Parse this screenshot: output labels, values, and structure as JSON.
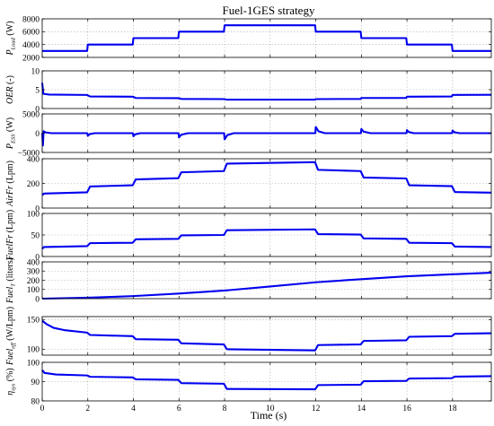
{
  "figure": {
    "title": "Fuel-1GES strategy",
    "xlabel": "Time (s)"
  },
  "colors": {
    "line": "#0000ee",
    "grid": "#b0b0b0",
    "axis": "#000000"
  },
  "chart_data": [
    {
      "type": "line",
      "ylabel_main": "P",
      "ylabel_sub": "Load",
      "ylabel_unit": "(W)",
      "xlim": [
        0,
        19.7
      ],
      "ylim": [
        2000,
        8000
      ],
      "yticks": [
        2000,
        4000,
        6000,
        8000
      ],
      "grid": true,
      "series": [
        {
          "x": [
            0,
            1.97,
            2.0,
            3.97,
            4.0,
            5.97,
            6.0,
            7.97,
            8.0,
            11.97,
            12.0,
            13.97,
            14.0,
            15.97,
            16.0,
            17.97,
            18.0,
            19.7
          ],
          "y": [
            3000,
            3000,
            4000,
            4000,
            5000,
            5000,
            6000,
            6000,
            7000,
            7000,
            6000,
            6000,
            5000,
            5000,
            4000,
            4000,
            3000,
            3000
          ]
        }
      ]
    },
    {
      "type": "line",
      "ylabel_main": "OER",
      "ylabel_sub": "",
      "ylabel_unit": "(-)",
      "xlim": [
        0,
        19.7
      ],
      "ylim": [
        0,
        10
      ],
      "yticks": [
        0,
        5,
        10
      ],
      "grid": true,
      "series": [
        {
          "x": [
            0,
            0.05,
            0.3,
            1.97,
            2.1,
            3.97,
            4.1,
            5.97,
            6.1,
            7.97,
            8.1,
            11.97,
            12.0,
            13.97,
            14.0,
            15.97,
            16.0,
            17.97,
            18.0,
            19.7
          ],
          "y": [
            6.8,
            3.9,
            3.7,
            3.6,
            3.2,
            3.15,
            2.8,
            2.75,
            2.55,
            2.5,
            2.35,
            2.35,
            2.5,
            2.55,
            2.8,
            2.8,
            3.15,
            3.2,
            3.6,
            3.65
          ]
        }
      ]
    },
    {
      "type": "line",
      "ylabel_main": "P",
      "ylabel_sub": "ESS",
      "ylabel_unit": "(W)",
      "xlim": [
        0,
        19.7
      ],
      "ylim": [
        -5000,
        5000
      ],
      "yticks": [
        -5000,
        0,
        5000
      ],
      "grid": true,
      "series": [
        {
          "x": [
            0,
            0.03,
            0.06,
            0.15,
            0.4,
            1.98,
            2.0,
            2.08,
            2.3,
            3.98,
            4.0,
            4.08,
            4.3,
            5.98,
            6.0,
            6.1,
            6.4,
            7.98,
            8.0,
            8.12,
            8.4,
            11.98,
            12.0,
            12.12,
            12.4,
            13.98,
            14.0,
            14.1,
            14.4,
            15.98,
            16.0,
            16.08,
            16.3,
            17.98,
            18.0,
            18.08,
            18.3,
            19.7
          ],
          "y": [
            0,
            -3200,
            500,
            200,
            0,
            0,
            -700,
            -250,
            0,
            0,
            -800,
            -300,
            0,
            0,
            -1100,
            -400,
            0,
            0,
            -1600,
            -500,
            0,
            0,
            1600,
            500,
            0,
            0,
            1100,
            400,
            0,
            0,
            800,
            300,
            0,
            0,
            700,
            250,
            0,
            0
          ]
        }
      ]
    },
    {
      "type": "line",
      "ylabel_main": "AirFr",
      "ylabel_sub": "",
      "ylabel_unit": "(Lpm)",
      "xlim": [
        0,
        19.7
      ],
      "ylim": [
        0,
        400
      ],
      "yticks": [
        0,
        200,
        400
      ],
      "grid": true,
      "series": [
        {
          "x": [
            0,
            0.08,
            1.97,
            2.1,
            3.97,
            4.1,
            5.97,
            6.1,
            7.97,
            8.1,
            11.97,
            12.1,
            13.97,
            14.1,
            15.97,
            16.1,
            17.97,
            18.1,
            19.7
          ],
          "y": [
            105,
            118,
            128,
            175,
            185,
            232,
            242,
            290,
            300,
            360,
            372,
            310,
            300,
            248,
            240,
            185,
            178,
            130,
            125
          ]
        }
      ]
    },
    {
      "type": "line",
      "ylabel_main": "FuelFr",
      "ylabel_sub": "",
      "ylabel_unit": "(Lpm)",
      "xlim": [
        0,
        19.7
      ],
      "ylim": [
        0,
        100
      ],
      "yticks": [
        0,
        50,
        100
      ],
      "grid": true,
      "series": [
        {
          "x": [
            0,
            0.08,
            1.97,
            2.1,
            3.97,
            4.1,
            5.97,
            6.1,
            7.97,
            8.1,
            11.97,
            12.1,
            13.97,
            14.1,
            15.97,
            16.1,
            17.97,
            18.1,
            19.7
          ],
          "y": [
            18,
            22,
            24,
            31,
            32,
            40,
            41,
            49,
            50,
            61,
            63,
            52,
            51,
            42,
            41,
            32,
            31,
            23,
            22
          ]
        }
      ]
    },
    {
      "type": "line",
      "ylabel_main": "Fuel",
      "ylabel_sub": "T",
      "ylabel_unit": "(liters)",
      "xlim": [
        0,
        19.7
      ],
      "ylim": [
        0,
        400
      ],
      "yticks": [
        0,
        100,
        200,
        300,
        400
      ],
      "grid": true,
      "series": [
        {
          "x": [
            0,
            2,
            4,
            6,
            8,
            10,
            12,
            14,
            16,
            18,
            19.7
          ],
          "y": [
            0,
            10,
            28,
            55,
            88,
            132,
            178,
            212,
            243,
            265,
            282
          ]
        }
      ]
    },
    {
      "type": "line",
      "ylabel_main": "Fuel",
      "ylabel_sub": "eff",
      "ylabel_unit": "(W/Lpm)",
      "xlim": [
        0,
        19.7
      ],
      "ylim": [
        90,
        155
      ],
      "yticks": [
        100,
        150
      ],
      "grid": true,
      "series": [
        {
          "x": [
            0,
            0.2,
            0.5,
            1.0,
            1.97,
            2.1,
            3.97,
            4.1,
            5.97,
            6.1,
            7.97,
            8.1,
            11.97,
            12.1,
            13.97,
            14.1,
            15.97,
            16.1,
            17.97,
            18.1,
            19.7
          ],
          "y": [
            148,
            142,
            136,
            132,
            128,
            124,
            122,
            117,
            116,
            110,
            108,
            100,
            98,
            107,
            108,
            114,
            115,
            121,
            122,
            126,
            127
          ]
        }
      ]
    },
    {
      "type": "line",
      "ylabel_main": "η",
      "ylabel_sub": "sys",
      "ylabel_unit": "(%)",
      "xlim": [
        0,
        19.7
      ],
      "ylim": [
        80,
        100
      ],
      "yticks": [
        80,
        90,
        100
      ],
      "grid": true,
      "series": [
        {
          "x": [
            0,
            0.1,
            0.6,
            1.97,
            2.1,
            3.97,
            4.1,
            5.97,
            6.1,
            7.97,
            8.1,
            11.97,
            12.1,
            13.97,
            14.1,
            15.97,
            16.1,
            17.97,
            18.1,
            19.7
          ],
          "y": [
            96,
            94.5,
            93.7,
            93.2,
            92.5,
            92.2,
            91.2,
            90.9,
            89.2,
            88.9,
            86.2,
            86.0,
            88.2,
            88.4,
            90.2,
            90.4,
            91.6,
            91.8,
            92.6,
            92.8
          ]
        }
      ]
    }
  ],
  "xaxis": {
    "ticks": [
      0,
      2,
      4,
      6,
      8,
      10,
      12,
      14,
      16,
      18
    ],
    "labels": [
      "0",
      "2",
      "4",
      "6",
      "8",
      "10",
      "12",
      "14",
      "16",
      "18"
    ]
  }
}
